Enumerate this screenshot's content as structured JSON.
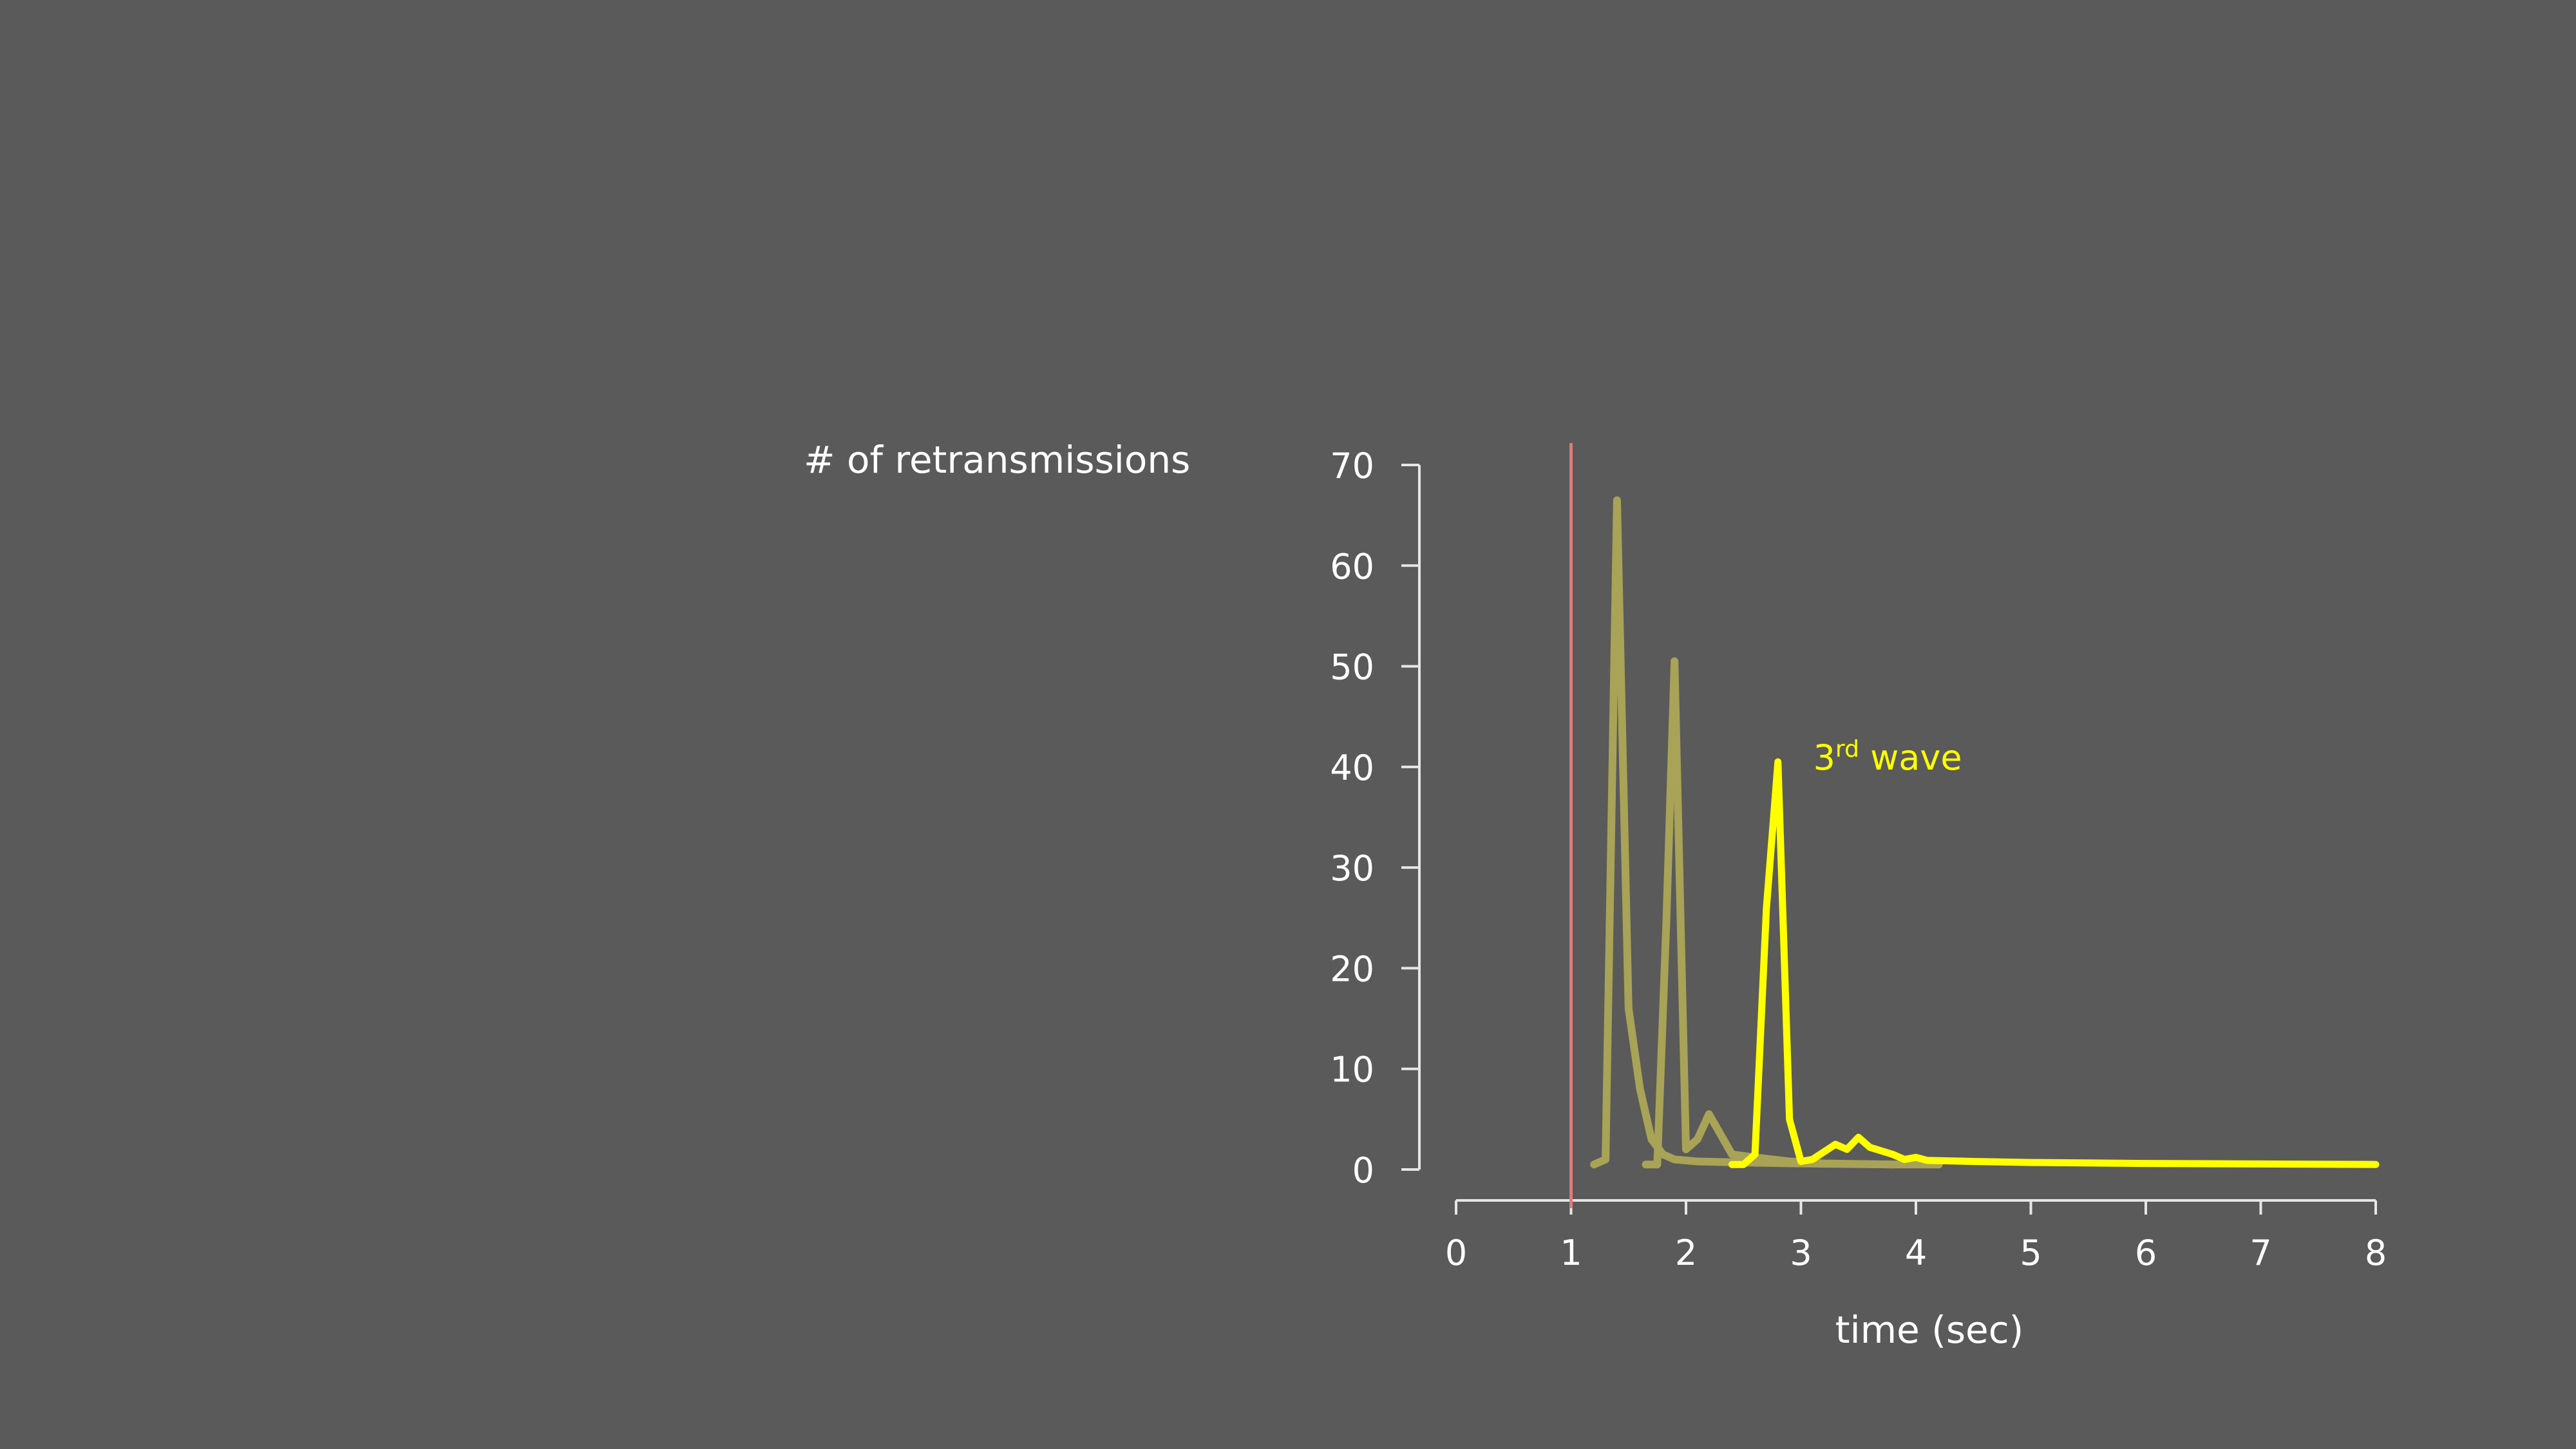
{
  "chart_data": {
    "type": "line",
    "title": "",
    "ylabel": "# of retransmissions",
    "xlabel": "time (sec)",
    "xlim": [
      0,
      8
    ],
    "ylim": [
      0,
      70
    ],
    "xticks": [
      0,
      1,
      2,
      3,
      4,
      5,
      6,
      7,
      8
    ],
    "yticks": [
      0,
      10,
      20,
      30,
      40,
      50,
      60,
      70
    ],
    "grid": false,
    "event_line": {
      "x": 1,
      "color": "#e07b7b"
    },
    "annotation": {
      "base": "3",
      "superscript": "rd",
      "rest": " wave",
      "x": 2.95,
      "y": 41
    },
    "series": [
      {
        "color": "#a8a356",
        "points": [
          [
            1.2,
            0.5
          ],
          [
            1.3,
            1
          ],
          [
            1.4,
            66.5
          ],
          [
            1.5,
            16
          ],
          [
            1.6,
            8
          ],
          [
            1.7,
            3
          ],
          [
            1.8,
            1.5
          ],
          [
            1.9,
            1
          ],
          [
            2.1,
            0.8
          ],
          [
            2.5,
            0.7
          ],
          [
            3.0,
            0.6
          ],
          [
            3.8,
            0.5
          ]
        ]
      },
      {
        "color": "#a8a356",
        "points": [
          [
            1.65,
            0.5
          ],
          [
            1.75,
            0.5
          ],
          [
            1.83,
            25
          ],
          [
            1.9,
            50.5
          ],
          [
            2.0,
            2
          ],
          [
            2.1,
            3
          ],
          [
            2.2,
            5.5
          ],
          [
            2.3,
            3.5
          ],
          [
            2.4,
            1.5
          ],
          [
            2.6,
            1.2
          ],
          [
            2.9,
            0.8
          ],
          [
            3.2,
            0.6
          ],
          [
            3.8,
            0.5
          ],
          [
            4.2,
            0.5
          ]
        ]
      },
      {
        "color": "#ffff00",
        "points": [
          [
            2.4,
            0.5
          ],
          [
            2.5,
            0.5
          ],
          [
            2.6,
            1.5
          ],
          [
            2.7,
            26
          ],
          [
            2.8,
            40.5
          ],
          [
            2.9,
            5
          ],
          [
            3.0,
            0.8
          ],
          [
            3.1,
            1
          ],
          [
            3.3,
            2.5
          ],
          [
            3.4,
            2
          ],
          [
            3.5,
            3.2
          ],
          [
            3.6,
            2.2
          ],
          [
            3.8,
            1.5
          ],
          [
            3.9,
            1
          ],
          [
            4.0,
            1.2
          ],
          [
            4.1,
            0.9
          ],
          [
            4.5,
            0.8
          ],
          [
            5.0,
            0.7
          ],
          [
            6.0,
            0.6
          ],
          [
            7.0,
            0.55
          ],
          [
            8.0,
            0.5
          ]
        ]
      }
    ]
  }
}
